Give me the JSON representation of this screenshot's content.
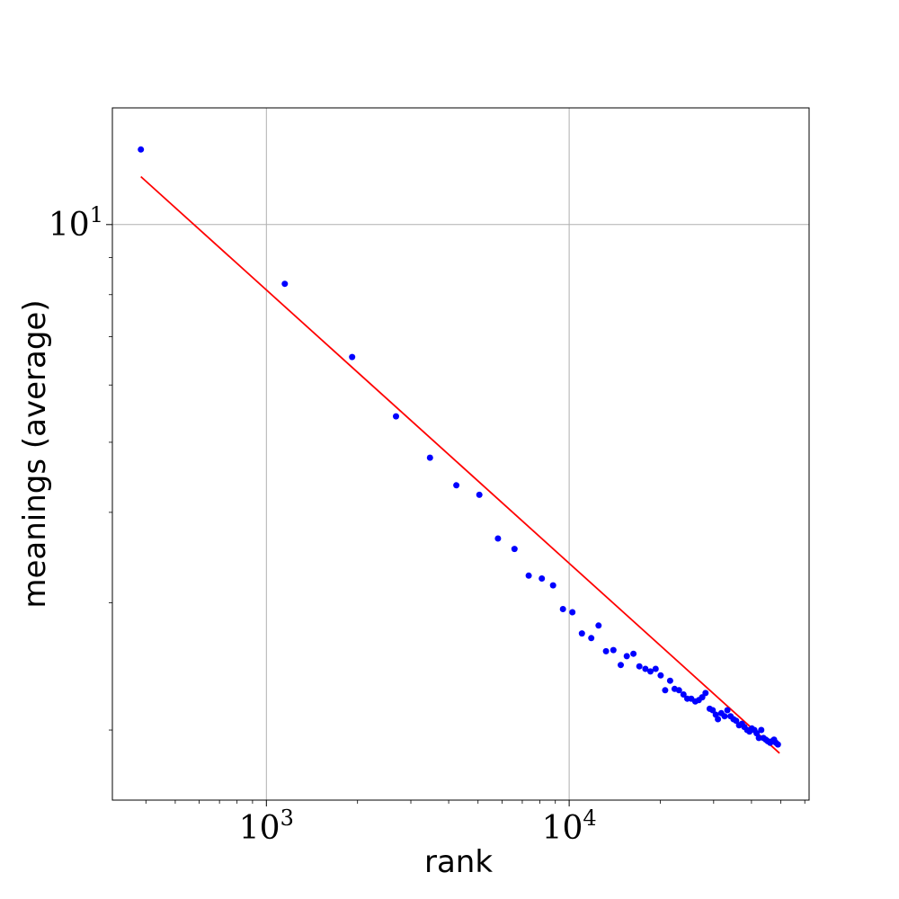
{
  "chart_data": {
    "type": "scatter",
    "title": "",
    "xlabel": "rank",
    "ylabel": "meanings (average)",
    "xscale": "log",
    "yscale": "log",
    "xlim": [
      310,
      62000
    ],
    "ylim": [
      1.6,
      14.5
    ],
    "grid": true,
    "x_major_ticks": [
      {
        "value": 1000,
        "base": "10",
        "exp": "3"
      },
      {
        "value": 10000,
        "base": "10",
        "exp": "4"
      }
    ],
    "y_major_ticks": [
      {
        "value": 10,
        "base": "10",
        "exp": "1"
      }
    ],
    "series": [
      {
        "kind": "scatter",
        "color": "#0000ff",
        "points": [
          [
            385,
            12.7
          ],
          [
            1150,
            8.28
          ],
          [
            1920,
            6.56
          ],
          [
            2680,
            5.43
          ],
          [
            3470,
            4.76
          ],
          [
            4240,
            4.36
          ],
          [
            5050,
            4.23
          ],
          [
            5820,
            3.68
          ],
          [
            6600,
            3.56
          ],
          [
            7350,
            3.27
          ],
          [
            8120,
            3.24
          ],
          [
            8850,
            3.17
          ],
          [
            9540,
            2.94
          ],
          [
            10250,
            2.91
          ],
          [
            11020,
            2.72
          ],
          [
            11830,
            2.68
          ],
          [
            12500,
            2.79
          ],
          [
            13230,
            2.57
          ],
          [
            14000,
            2.58
          ],
          [
            14800,
            2.46
          ],
          [
            15500,
            2.53
          ],
          [
            16300,
            2.55
          ],
          [
            17050,
            2.45
          ],
          [
            17850,
            2.43
          ],
          [
            18550,
            2.41
          ],
          [
            19300,
            2.43
          ],
          [
            20050,
            2.38
          ],
          [
            20750,
            2.27
          ],
          [
            21550,
            2.34
          ],
          [
            22300,
            2.28
          ],
          [
            23050,
            2.27
          ],
          [
            23850,
            2.24
          ],
          [
            24550,
            2.21
          ],
          [
            25300,
            2.21
          ],
          [
            26100,
            2.19
          ],
          [
            26800,
            2.2
          ],
          [
            27500,
            2.22
          ],
          [
            28200,
            2.25
          ],
          [
            29100,
            2.14
          ],
          [
            29800,
            2.13
          ],
          [
            30500,
            2.1
          ],
          [
            31000,
            2.07
          ],
          [
            31800,
            2.11
          ],
          [
            32600,
            2.09
          ],
          [
            33300,
            2.13
          ],
          [
            34100,
            2.09
          ],
          [
            34900,
            2.07
          ],
          [
            35600,
            2.06
          ],
          [
            36400,
            2.03
          ],
          [
            37200,
            2.04
          ],
          [
            37900,
            2.02
          ],
          [
            38700,
            2.0
          ],
          [
            39400,
            1.99
          ],
          [
            40100,
            2.01
          ],
          [
            40900,
            2.0
          ],
          [
            41600,
            1.98
          ],
          [
            42300,
            1.95
          ],
          [
            43100,
            2.0
          ],
          [
            43800,
            1.95
          ],
          [
            44600,
            1.94
          ],
          [
            45300,
            1.93
          ],
          [
            46100,
            1.92
          ],
          [
            46800,
            1.93
          ],
          [
            47500,
            1.94
          ],
          [
            48200,
            1.92
          ],
          [
            48900,
            1.91
          ]
        ]
      },
      {
        "kind": "line",
        "color": "#ff0000",
        "points": [
          [
            385,
            11.65
          ],
          [
            49500,
            1.858
          ]
        ]
      }
    ]
  }
}
